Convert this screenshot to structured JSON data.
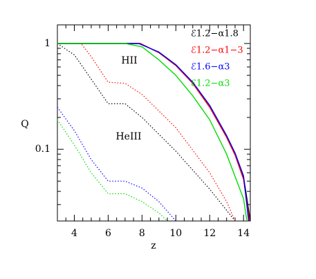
{
  "chart_data": {
    "type": "line",
    "xlabel": "z",
    "ylabel": "Q",
    "annotations": [
      "HII",
      "HeIII"
    ],
    "xlim": [
      3,
      14.4
    ],
    "ylim": [
      0.021,
      1.5
    ],
    "ylog": true,
    "xticks": [
      4,
      6,
      8,
      10,
      12,
      14
    ],
    "xminorticks": [
      3.5,
      4.5,
      5,
      5.5,
      6.5,
      7,
      7.5,
      8.5,
      9,
      9.5,
      10.5,
      11,
      11.5,
      12.5,
      13,
      13.5
    ],
    "yticks": [
      0.1,
      1
    ],
    "yminorticks": [
      0.03,
      0.04,
      0.05,
      0.06,
      0.07,
      0.08,
      0.09,
      0.2,
      0.3,
      0.4,
      0.5,
      0.6,
      0.7,
      0.8,
      0.9
    ],
    "series": [
      {
        "name": "ℰ1.2−α1.8",
        "color": "#000000",
        "hii": {
          "x": [
            3,
            7.9,
            9,
            10,
            11,
            12,
            13,
            13.5,
            14,
            14.4
          ],
          "values": [
            1,
            1,
            0.82,
            0.62,
            0.42,
            0.25,
            0.13,
            0.09,
            0.055,
            0.021
          ]
        },
        "heiii": {
          "x": [
            3,
            4,
            5,
            6,
            7,
            8,
            10,
            12,
            13.5
          ],
          "values": [
            1,
            0.78,
            0.46,
            0.27,
            0.27,
            0.2,
            0.096,
            0.042,
            0.021
          ]
        }
      },
      {
        "name": "ℰ1.2−α1−3",
        "color": "#ff0000",
        "hii": {
          "x": [
            3,
            7.9,
            9,
            10,
            11,
            12,
            13,
            13.5,
            14,
            14.35
          ],
          "values": [
            1,
            1,
            0.82,
            0.62,
            0.42,
            0.25,
            0.13,
            0.088,
            0.052,
            0.021
          ]
        },
        "heiii": {
          "x": [
            3,
            4.4,
            5,
            6,
            7,
            8,
            10,
            12,
            13,
            13.5
          ],
          "values": [
            1,
            1,
            0.75,
            0.43,
            0.42,
            0.33,
            0.16,
            0.06,
            0.032,
            0.021
          ]
        }
      },
      {
        "name": "ℰ1.6−α3",
        "color": "#0000ff",
        "hii": {
          "x": [
            3,
            7.8,
            9,
            10,
            11,
            12,
            13,
            13.5,
            14,
            14.3
          ],
          "values": [
            1,
            1,
            0.83,
            0.63,
            0.43,
            0.26,
            0.135,
            0.092,
            0.056,
            0.021
          ]
        },
        "heiii": {
          "x": [
            3,
            4,
            5,
            6,
            7,
            8,
            9,
            10
          ],
          "values": [
            0.25,
            0.15,
            0.08,
            0.05,
            0.05,
            0.043,
            0.032,
            0.021
          ]
        }
      },
      {
        "name": "ℰ1.2−α3",
        "color": "#00dd00",
        "hii": {
          "x": [
            3,
            7,
            8,
            9,
            10,
            11,
            12,
            13,
            14,
            14.2
          ],
          "values": [
            1,
            1,
            0.93,
            0.7,
            0.5,
            0.32,
            0.19,
            0.09,
            0.034,
            0.021
          ]
        },
        "heiii": {
          "x": [
            3,
            4,
            5,
            6,
            7,
            8,
            9,
            9.5
          ],
          "values": [
            0.19,
            0.11,
            0.06,
            0.038,
            0.038,
            0.032,
            0.025,
            0.021
          ]
        }
      }
    ]
  }
}
